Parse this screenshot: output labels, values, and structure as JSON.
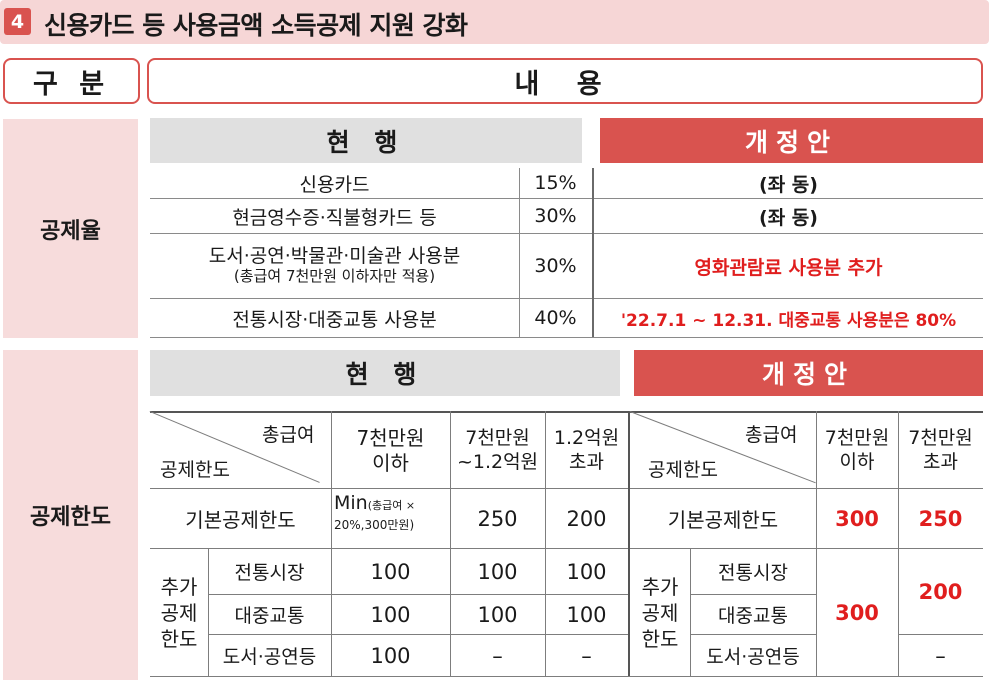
{
  "title": {
    "badge": "4",
    "text": "신용카드 등 사용금액 소득공제 지원 강화"
  },
  "headers": {
    "gubun": "구 분",
    "naeyong": "내 용"
  },
  "rate_section": {
    "category": "공제율",
    "current_label": "현 행",
    "proposed_label": "개정안",
    "rows": [
      {
        "item": "신용카드",
        "item_sub": "",
        "rate": "15%",
        "proposed": "(좌 동)"
      },
      {
        "item": "현금영수증·직불형카드 등",
        "item_sub": "",
        "rate": "30%",
        "proposed": "(좌 동)"
      },
      {
        "item": "도서·공연·박물관·미술관 사용분",
        "item_sub": "(총급여 7천만원 이하자만 적용)",
        "rate": "30%",
        "proposed": "영화관람료 사용분 추가"
      },
      {
        "item": "전통시장·대중교통 사용분",
        "item_sub": "",
        "rate": "40%",
        "proposed": "'22.7.1 ~ 12.31. 대중교통 사용분은 80%"
      }
    ]
  },
  "limit_section": {
    "category": "공제한도",
    "current_label": "현 행",
    "proposed_label": "개정안",
    "current_table": {
      "corner_top": "총급여",
      "corner_bottom": "공제한도",
      "columns": [
        {
          "line1": "7천만원",
          "line2": "이하"
        },
        {
          "line1": "7천만원",
          "line2": "~1.2억원"
        },
        {
          "line1": "1.2억원",
          "line2": "초과"
        }
      ],
      "basic_label": "기본공제한도",
      "basic_values": {
        "v1_main": "Min",
        "v1_small_a": "(총급여 ×",
        "v1_small_b": "20%,300만원)",
        "v2": "250",
        "v3": "200"
      },
      "extra_label": [
        "추가",
        "공제",
        "한도"
      ],
      "extra_rows": [
        {
          "label": "전통시장",
          "values": [
            "100",
            "100",
            "100"
          ]
        },
        {
          "label": "대중교통",
          "values": [
            "100",
            "100",
            "100"
          ]
        },
        {
          "label": "도서·공연등",
          "values": [
            "100",
            "–",
            "–"
          ]
        }
      ]
    },
    "proposed_table": {
      "corner_top": "총급여",
      "corner_bottom": "공제한도",
      "columns": [
        {
          "line1": "7천만원",
          "line2": "이하"
        },
        {
          "line1": "7천만원",
          "line2": "초과"
        }
      ],
      "basic_label": "기본공제한도",
      "basic_values": [
        "300",
        "250"
      ],
      "extra_label": [
        "추가",
        "공제",
        "한도"
      ],
      "extra_rows": [
        "전통시장",
        "대중교통",
        "도서·공연등"
      ],
      "extra_value_col1": "300",
      "extra_value_col2_top": "200",
      "extra_value_col2_bottom": "–"
    }
  },
  "colors": {
    "accent": "#d9534f",
    "pink_bg": "#f7dcdc",
    "gray_bg": "#e0e0e0",
    "red_text": "#e01e1e"
  }
}
